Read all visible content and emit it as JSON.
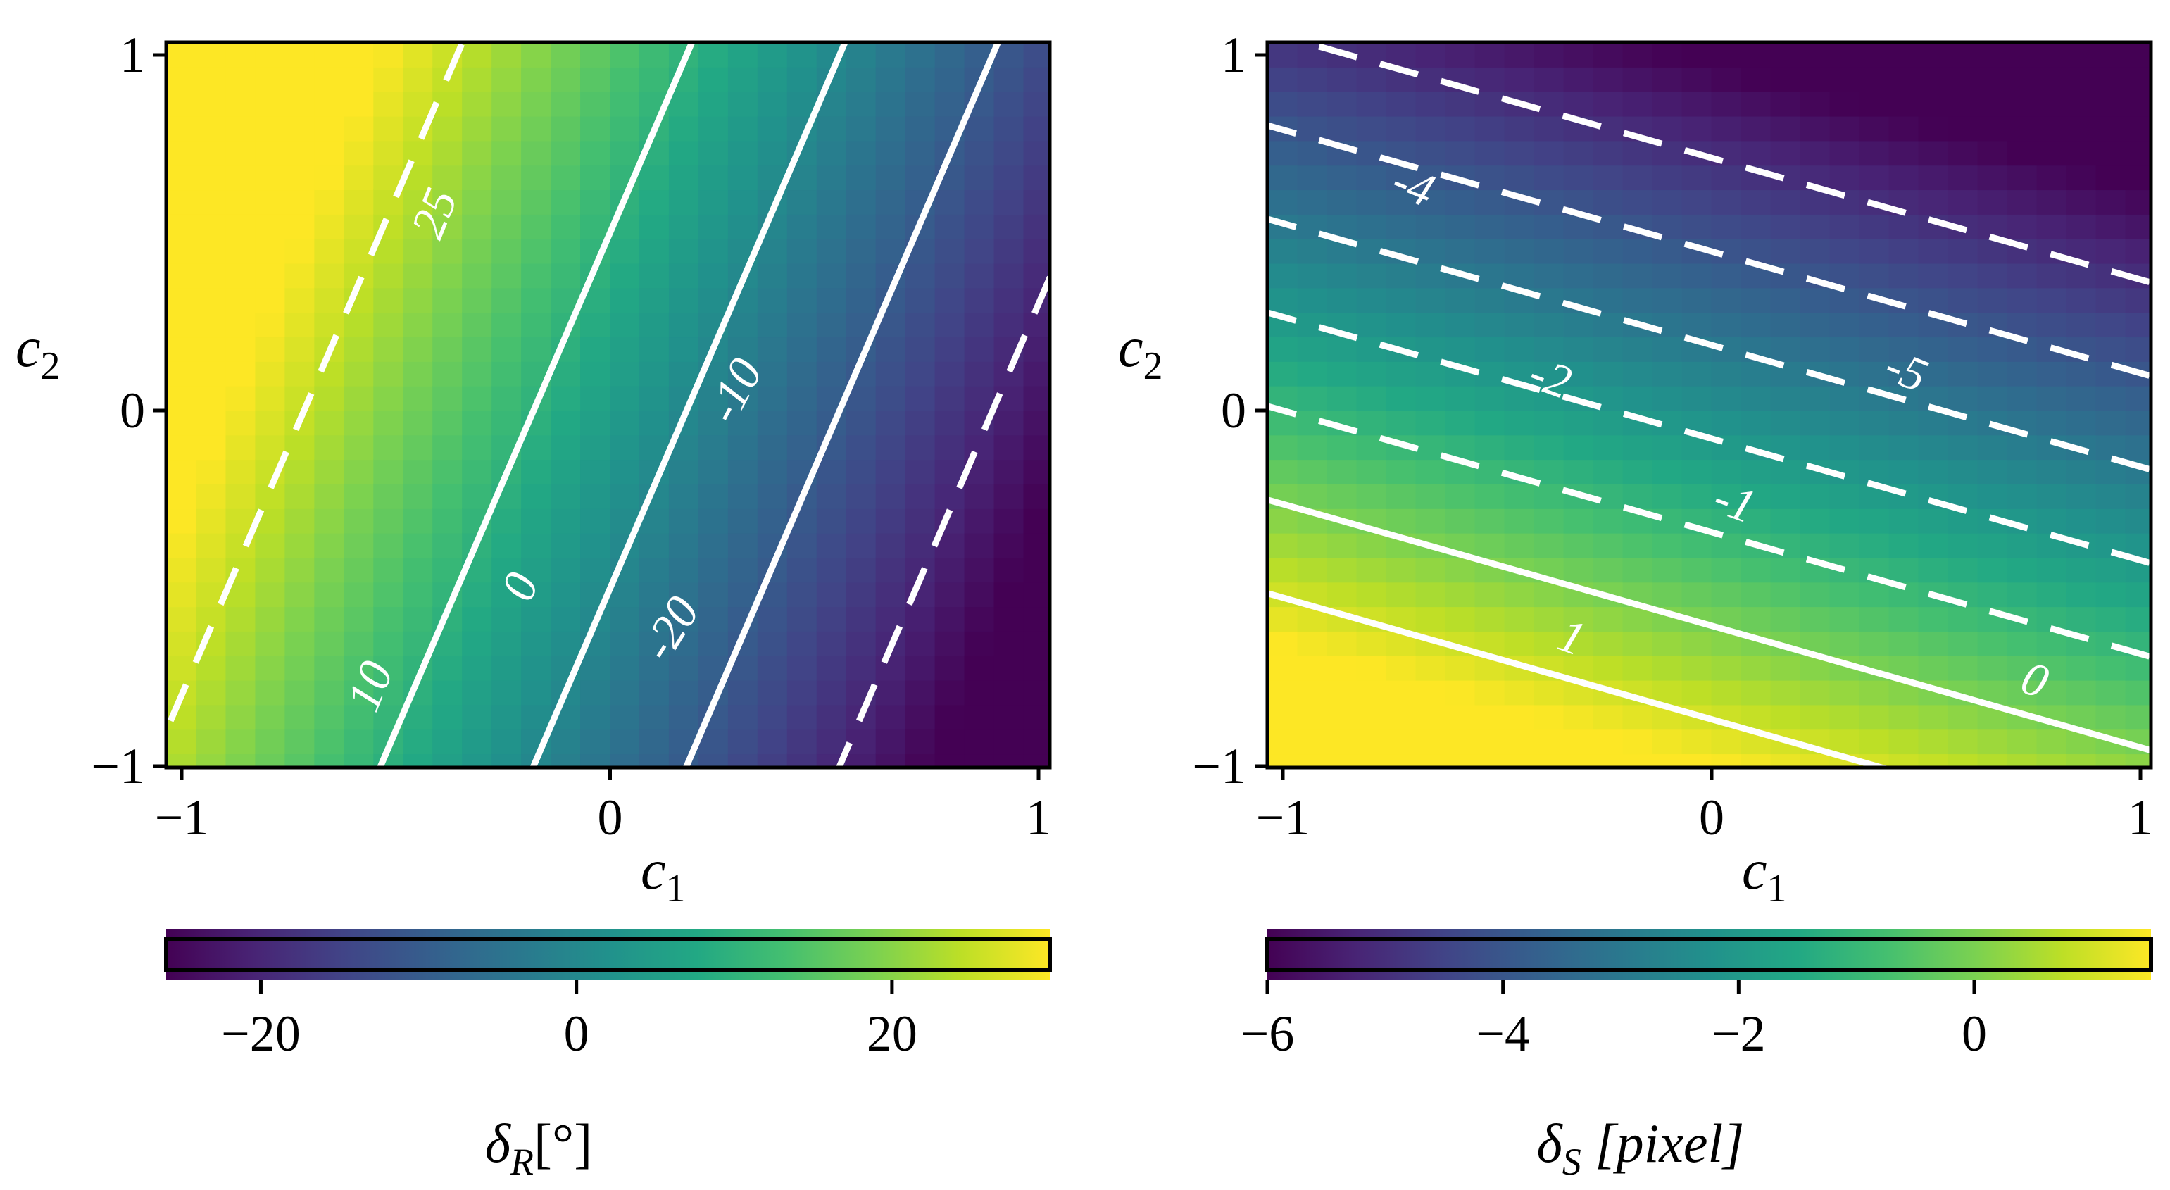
{
  "chart_data": [
    {
      "type": "heatmap",
      "subtype": "heatmap-with-contours",
      "xlabel": "c₁",
      "ylabel": "c₂",
      "xlim": [
        -1,
        1
      ],
      "ylim": [
        -1,
        1
      ],
      "xticks": [
        {
          "v": -1,
          "label": "−1"
        },
        {
          "v": 0,
          "label": "0"
        },
        {
          "v": 1,
          "label": "1"
        }
      ],
      "yticks": [
        {
          "v": -1,
          "label": "−1"
        },
        {
          "v": 0,
          "label": "0"
        },
        {
          "v": 1,
          "label": "1"
        }
      ],
      "colormap": "viridis",
      "field": {
        "offset": 5,
        "coef_c1": -28,
        "coef_c2": 10
      },
      "colorbar": {
        "label": "δR[°]",
        "label_main": "δ",
        "label_sub": "R",
        "label_rest": "[°]",
        "range": [
          -26,
          30
        ],
        "ticks": [
          {
            "v": -20,
            "label": "−20"
          },
          {
            "v": 0,
            "label": "0"
          },
          {
            "v": 20,
            "label": "20"
          }
        ]
      },
      "contours": [
        {
          "level": 25,
          "label": "25",
          "dashed": true,
          "label_at": [
            -0.4,
            0.55
          ],
          "label_rot": -68
        },
        {
          "level": 10,
          "label": "10",
          "dashed": false,
          "label_at": [
            -0.55,
            -0.78
          ],
          "label_rot": -68
        },
        {
          "level": 0,
          "label": "0",
          "dashed": false,
          "label_at": [
            -0.2,
            -0.5
          ],
          "label_rot": -68
        },
        {
          "level": -10,
          "label": "-10",
          "dashed": false,
          "label_at": [
            0.3,
            0.05
          ],
          "label_rot": -62
        },
        {
          "level": -20,
          "label": "-20",
          "dashed": true,
          "label_at": [
            0.15,
            -0.62
          ],
          "label_rot": -58
        }
      ],
      "grid": false
    },
    {
      "type": "heatmap",
      "subtype": "heatmap-with-contours",
      "xlabel": "c₁",
      "ylabel": "c₂",
      "xlim": [
        -1,
        1
      ],
      "ylim": [
        -1,
        1
      ],
      "xticks": [
        {
          "v": -1,
          "label": "−1"
        },
        {
          "v": 0,
          "label": "0"
        },
        {
          "v": 1,
          "label": "1"
        }
      ],
      "yticks": [
        {
          "v": -1,
          "label": "−1"
        },
        {
          "v": 0,
          "label": "0"
        },
        {
          "v": 1,
          "label": "1"
        }
      ],
      "colormap": "viridis",
      "field": {
        "offset": -2.3,
        "coef_c1": -1.3,
        "coef_c2": -3.8
      },
      "colorbar": {
        "label": "δS [pixel]",
        "label_main": "δ",
        "label_sub": "S",
        "label_rest": " [pixel]",
        "range": [
          -6,
          1.5
        ],
        "ticks": [
          {
            "v": -6,
            "label": "−6"
          },
          {
            "v": -4,
            "label": "−4"
          },
          {
            "v": -2,
            "label": "−2"
          },
          {
            "v": 0,
            "label": "0"
          }
        ]
      },
      "contours": [
        {
          "level": -5,
          "label": "-5",
          "dashed": true,
          "label_at": [
            0.45,
            0.1
          ],
          "label_rot": 22
        },
        {
          "level": -4,
          "label": "-4",
          "dashed": true,
          "label_at": [
            -0.7,
            0.62
          ],
          "label_rot": 22
        },
        {
          "level": -3,
          "label": "",
          "dashed": true,
          "label_at": null,
          "label_rot": 0
        },
        {
          "level": -2,
          "label": "-2",
          "dashed": true,
          "label_at": [
            -0.38,
            0.08
          ],
          "label_rot": 20
        },
        {
          "level": -1,
          "label": "-1",
          "dashed": true,
          "label_at": [
            0.05,
            -0.27
          ],
          "label_rot": 20
        },
        {
          "level": 0,
          "label": "0",
          "dashed": false,
          "label_at": [
            0.75,
            -0.77
          ],
          "label_rot": 20
        },
        {
          "level": 1,
          "label": "1",
          "dashed": false,
          "label_at": [
            -0.33,
            -0.65
          ],
          "label_rot": 20
        }
      ],
      "grid": false
    }
  ]
}
